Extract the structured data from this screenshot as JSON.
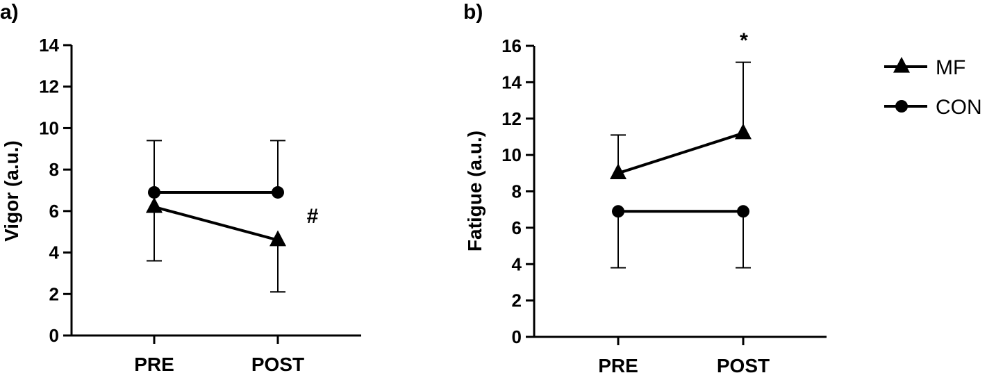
{
  "chart_data": [
    {
      "type": "line",
      "panel_label": "a)",
      "ylabel": "Vigor (a.u.)",
      "categories": [
        "PRE",
        "POST"
      ],
      "ylim": [
        0,
        14
      ],
      "yticks": [
        0,
        2,
        4,
        6,
        8,
        10,
        12,
        14
      ],
      "series": [
        {
          "name": "MF",
          "marker": "triangle",
          "values": [
            6.2,
            4.6
          ],
          "err_upper": [
            null,
            null
          ],
          "err_lower": [
            3.6,
            2.1
          ]
        },
        {
          "name": "CON",
          "marker": "circle",
          "values": [
            6.9,
            6.9
          ],
          "err_upper": [
            9.4,
            9.4
          ],
          "err_lower": [
            null,
            null
          ]
        }
      ],
      "annotation": "#"
    },
    {
      "type": "line",
      "panel_label": "b)",
      "ylabel": "Fatigue (a.u.)",
      "categories": [
        "PRE",
        "POST"
      ],
      "ylim": [
        0,
        16
      ],
      "yticks": [
        0,
        2,
        4,
        6,
        8,
        10,
        12,
        14,
        16
      ],
      "series": [
        {
          "name": "MF",
          "marker": "triangle",
          "values": [
            9.0,
            11.2
          ],
          "err_upper": [
            11.1,
            15.1
          ],
          "err_lower": [
            null,
            null
          ]
        },
        {
          "name": "CON",
          "marker": "circle",
          "values": [
            6.9,
            6.9
          ],
          "err_upper": [
            null,
            null
          ],
          "err_lower": [
            3.8,
            3.8
          ]
        }
      ],
      "annotation": "*"
    }
  ],
  "legend": [
    {
      "label": "MF",
      "marker": "triangle"
    },
    {
      "label": "CON",
      "marker": "circle"
    }
  ]
}
